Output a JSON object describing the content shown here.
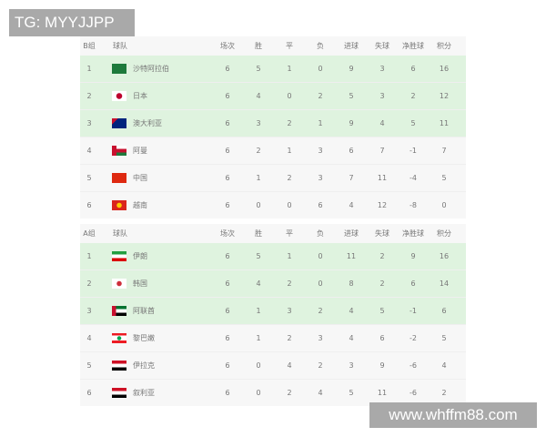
{
  "watermark_top": "TG: MYYJJPP",
  "watermark_bottom": "www.whffm88.com",
  "columns": [
    "场次",
    "胜",
    "平",
    "负",
    "进球",
    "失球",
    "净胜球",
    "积分"
  ],
  "team_header": "球队",
  "groups": [
    {
      "label": "B组",
      "rows": [
        {
          "rank": "1",
          "team": "沙特阿拉伯",
          "flag": "saudi-arabia",
          "qualified": true,
          "stats": [
            "6",
            "5",
            "1",
            "0",
            "9",
            "3",
            "6",
            "16"
          ]
        },
        {
          "rank": "2",
          "team": "日本",
          "flag": "japan",
          "qualified": true,
          "stats": [
            "6",
            "4",
            "0",
            "2",
            "5",
            "3",
            "2",
            "12"
          ]
        },
        {
          "rank": "3",
          "team": "澳大利亚",
          "flag": "australia",
          "qualified": true,
          "stats": [
            "6",
            "3",
            "2",
            "1",
            "9",
            "4",
            "5",
            "11"
          ]
        },
        {
          "rank": "4",
          "team": "阿曼",
          "flag": "oman",
          "qualified": false,
          "stats": [
            "6",
            "2",
            "1",
            "3",
            "6",
            "7",
            "-1",
            "7"
          ]
        },
        {
          "rank": "5",
          "team": "中国",
          "flag": "china",
          "qualified": false,
          "stats": [
            "6",
            "1",
            "2",
            "3",
            "7",
            "11",
            "-4",
            "5"
          ]
        },
        {
          "rank": "6",
          "team": "越南",
          "flag": "vietnam",
          "qualified": false,
          "stats": [
            "6",
            "0",
            "0",
            "6",
            "4",
            "12",
            "-8",
            "0"
          ]
        }
      ]
    },
    {
      "label": "A组",
      "rows": [
        {
          "rank": "1",
          "team": "伊朗",
          "flag": "iran",
          "qualified": true,
          "stats": [
            "6",
            "5",
            "1",
            "0",
            "11",
            "2",
            "9",
            "16"
          ]
        },
        {
          "rank": "2",
          "team": "韩国",
          "flag": "south-korea",
          "qualified": true,
          "stats": [
            "6",
            "4",
            "2",
            "0",
            "8",
            "2",
            "6",
            "14"
          ]
        },
        {
          "rank": "3",
          "team": "阿联酋",
          "flag": "uae",
          "qualified": true,
          "stats": [
            "6",
            "1",
            "3",
            "2",
            "4",
            "5",
            "-1",
            "6"
          ]
        },
        {
          "rank": "4",
          "team": "黎巴嫩",
          "flag": "lebanon",
          "qualified": false,
          "stats": [
            "6",
            "1",
            "2",
            "3",
            "4",
            "6",
            "-2",
            "5"
          ]
        },
        {
          "rank": "5",
          "team": "伊拉克",
          "flag": "iraq",
          "qualified": false,
          "stats": [
            "6",
            "0",
            "4",
            "2",
            "3",
            "9",
            "-6",
            "4"
          ]
        },
        {
          "rank": "6",
          "team": "叙利亚",
          "flag": "syria",
          "qualified": false,
          "stats": [
            "6",
            "0",
            "2",
            "4",
            "5",
            "11",
            "-6",
            "2"
          ]
        }
      ]
    }
  ],
  "colors": {
    "qualified_row": "#dff3df",
    "row": "#f7f7f7",
    "watermark": "#a9a9a9"
  }
}
